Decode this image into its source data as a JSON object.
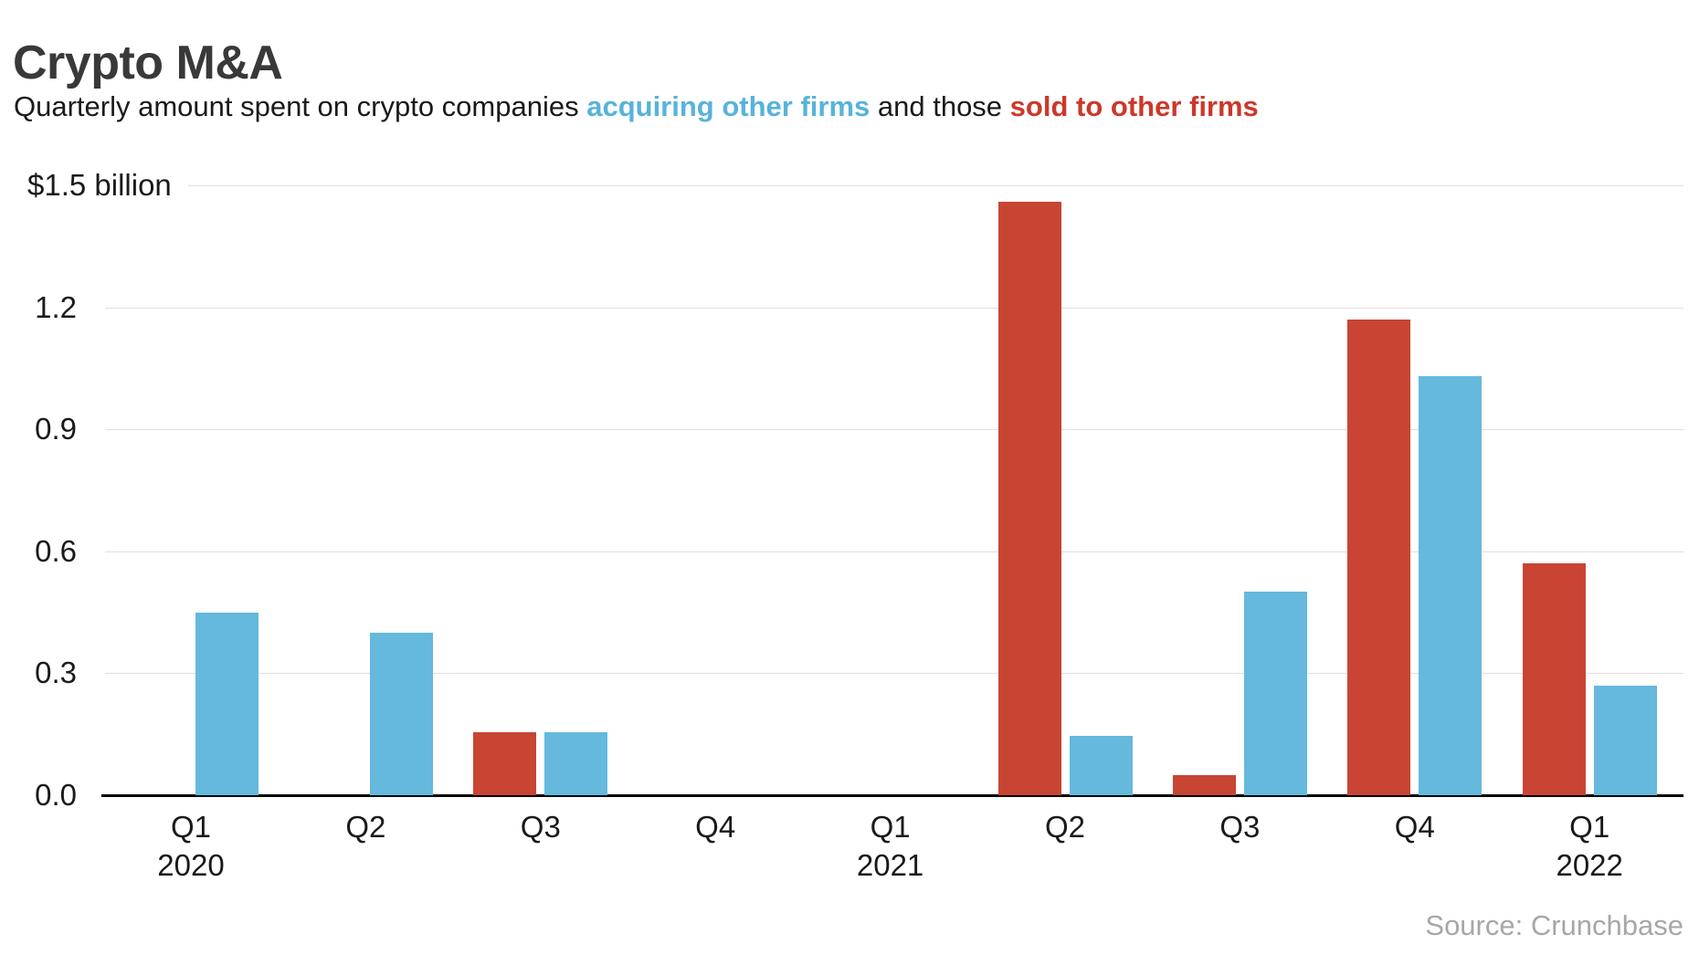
{
  "header": {
    "title": "Crypto M&A",
    "subtitle_prefix": "Quarterly amount spent on crypto companies ",
    "subtitle_acquiring": "acquiring other firms",
    "subtitle_middle": " and those ",
    "subtitle_sold": "sold to other firms"
  },
  "colors": {
    "bar_blue": "#64b9dc",
    "bar_red": "#c84534",
    "subtitle_blue": "#57b3da",
    "subtitle_red": "#cc382b",
    "grid_line": "#dfdfe1",
    "axis_line": "#000000",
    "title_text": "#393939",
    "body_text": "#1a1a1a",
    "source_text": "#a7a7a7"
  },
  "chart_data": {
    "type": "bar",
    "title": "Crypto M&A",
    "subtitle": "Quarterly amount spent on crypto companies acquiring other firms and those sold to other firms",
    "unit": "USD billions",
    "categories": [
      "Q1 2020",
      "Q2 2020",
      "Q3 2020",
      "Q4 2020",
      "Q1 2021",
      "Q2 2021",
      "Q3 2021",
      "Q4 2021",
      "Q1 2022"
    ],
    "x_ticks": [
      {
        "quarter": "Q1",
        "year": "2020"
      },
      {
        "quarter": "Q2"
      },
      {
        "quarter": "Q3"
      },
      {
        "quarter": "Q4"
      },
      {
        "quarter": "Q1",
        "year": "2021"
      },
      {
        "quarter": "Q2"
      },
      {
        "quarter": "Q3"
      },
      {
        "quarter": "Q4"
      },
      {
        "quarter": "Q1",
        "year": "2022"
      }
    ],
    "series": [
      {
        "key": "sold",
        "name": "sold to other firms",
        "color_key": "bar_red",
        "slot": "left",
        "values": [
          null,
          null,
          0.155,
          null,
          null,
          1.46,
          0.05,
          1.17,
          0.57
        ]
      },
      {
        "key": "acquiring",
        "name": "acquiring other firms",
        "color_key": "bar_blue",
        "slot": "right",
        "values": [
          0.45,
          0.4,
          0.155,
          null,
          null,
          0.145,
          0.5,
          1.03,
          0.27
        ]
      }
    ],
    "ylim": [
      0,
      1.5
    ],
    "yticks": [
      {
        "value": 0,
        "label": "0.0"
      },
      {
        "value": 0.3,
        "label": "0.3"
      },
      {
        "value": 0.6,
        "label": "0.6"
      },
      {
        "value": 0.9,
        "label": "0.9"
      },
      {
        "value": 1.2,
        "label": "1.2"
      },
      {
        "value": 1.5,
        "label": "$1.5 billion",
        "top_label": true
      }
    ],
    "grid": true,
    "legend_position": "inline-in-subtitle"
  },
  "footer": {
    "source": "Source: Crunchbase"
  }
}
